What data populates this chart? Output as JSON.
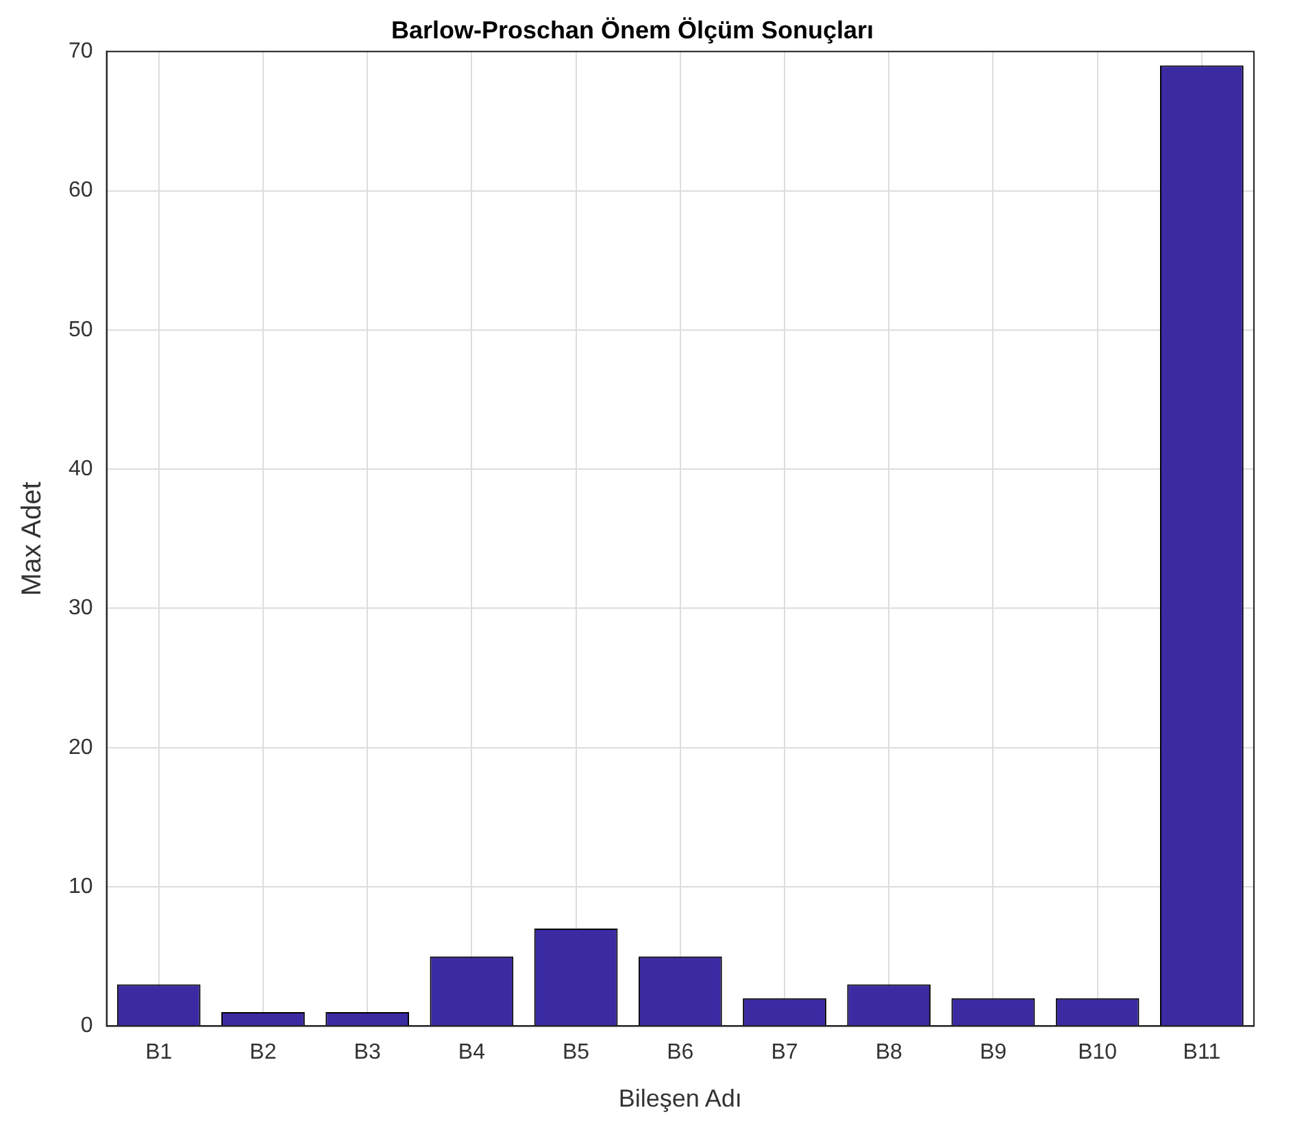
{
  "chart_data": {
    "type": "bar",
    "title": "Barlow-Proschan Önem Ölçüm Sonuçları",
    "xlabel": "Bileşen Adı",
    "ylabel": "Max Adet",
    "categories": [
      "B1",
      "B2",
      "B3",
      "B4",
      "B5",
      "B6",
      "B7",
      "B8",
      "B9",
      "B10",
      "B11"
    ],
    "values": [
      3,
      1,
      1,
      5,
      7,
      5,
      2,
      3,
      2,
      2,
      69
    ],
    "color": "#3a2ba3",
    "ylim": [
      0,
      70
    ],
    "yticks": [
      0,
      10,
      20,
      30,
      40,
      50,
      60,
      70
    ],
    "grid": true
  }
}
